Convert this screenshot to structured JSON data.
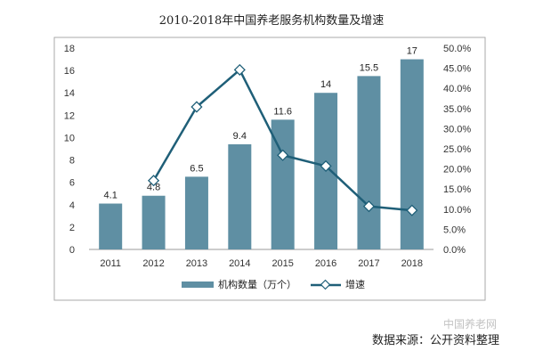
{
  "chart_data": {
    "type": "bar",
    "title": "2010-2018年中国养老服务机构数量及增速",
    "categories": [
      "2011",
      "2012",
      "2013",
      "2014",
      "2015",
      "2016",
      "2017",
      "2018"
    ],
    "series": [
      {
        "name": "机构数量（万个）",
        "type": "bar",
        "axis": "left",
        "values": [
          4.1,
          4.8,
          6.5,
          9.4,
          11.6,
          14,
          15.5,
          17
        ],
        "labels": [
          "4.1",
          "4.8",
          "6.5",
          "9.4",
          "11.6",
          "14",
          "15.5",
          "17"
        ]
      },
      {
        "name": "增速",
        "type": "line",
        "axis": "right",
        "values": [
          null,
          17.1,
          35.4,
          44.6,
          23.4,
          20.7,
          10.7,
          9.7
        ]
      }
    ],
    "ylim_left": [
      0,
      18
    ],
    "yticks_left": [
      "0",
      "2",
      "4",
      "6",
      "8",
      "10",
      "12",
      "14",
      "16",
      "18"
    ],
    "ylim_right": [
      0,
      50
    ],
    "yticks_right": [
      "0.0%",
      "5.0%",
      "10.0%",
      "15.0%",
      "20.0%",
      "25.0%",
      "30.0%",
      "35.0%",
      "40.0%",
      "45.0%",
      "50.0%"
    ],
    "grid": false,
    "legend_position": "bottom",
    "colors": {
      "bar": "#5f8fa3",
      "line": "#1f5f78",
      "frame": "#aaaaaa"
    }
  },
  "source_text": "数据来源：公开资料整理",
  "watermark_text": "中国养老网"
}
